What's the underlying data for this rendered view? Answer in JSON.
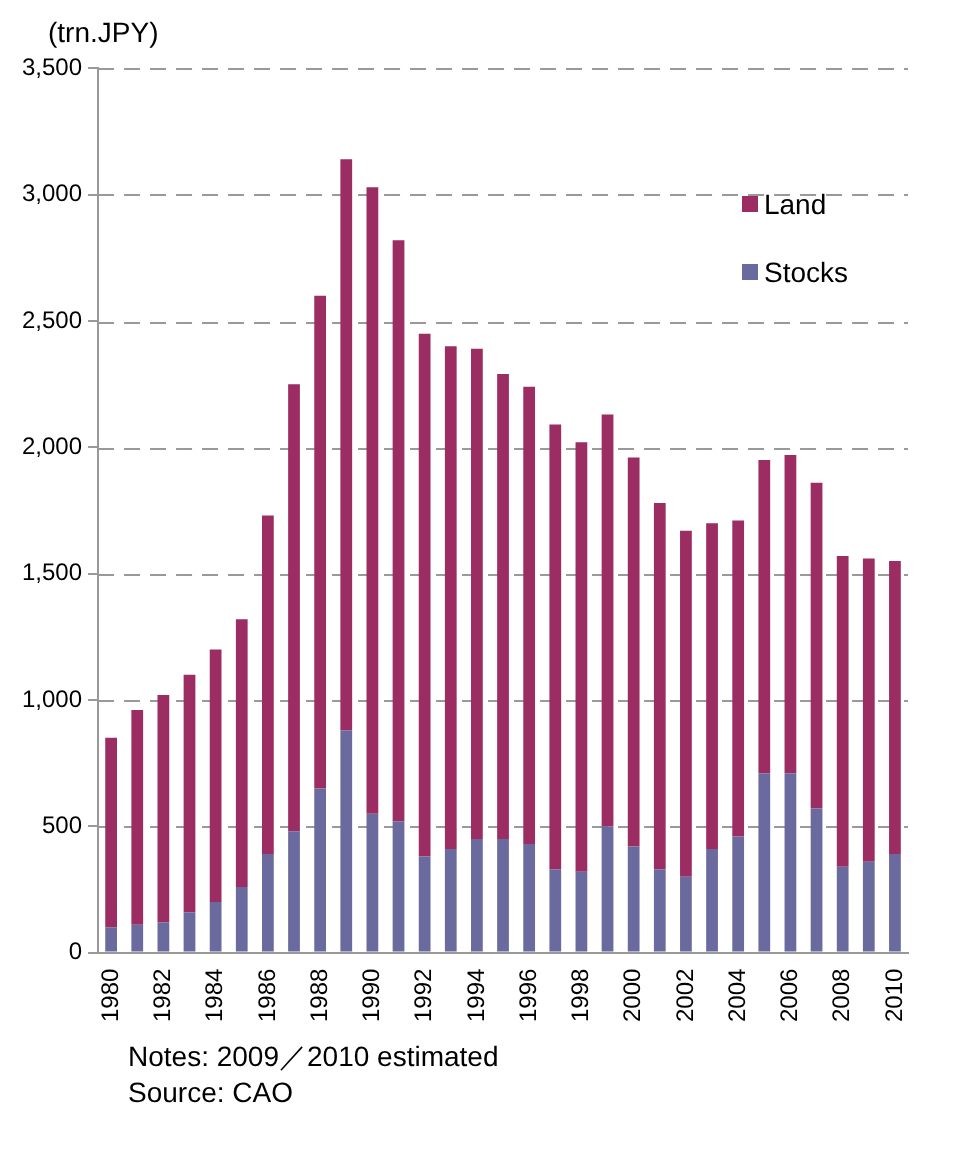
{
  "chart_data": {
    "type": "bar",
    "stacked": true,
    "ylabel": "(trn.JPY)",
    "categories": [
      "1980",
      null,
      "1982",
      null,
      "1984",
      null,
      "1986",
      null,
      "1988",
      null,
      "1990",
      null,
      "1992",
      null,
      "1994",
      null,
      "1996",
      null,
      "1998",
      null,
      "2000",
      null,
      "2002",
      null,
      "2004",
      null,
      "2006",
      null,
      "2008",
      null,
      "2010"
    ],
    "series": [
      {
        "name": "Stocks",
        "color": "#6a6a9e",
        "values": [
          100,
          110,
          120,
          160,
          200,
          260,
          390,
          480,
          650,
          880,
          550,
          520,
          380,
          410,
          450,
          450,
          430,
          330,
          320,
          500,
          420,
          330,
          300,
          410,
          460,
          710,
          710,
          570,
          340,
          360,
          390
        ]
      },
      {
        "name": "Land",
        "color": "#9b2d62",
        "values": [
          750,
          850,
          900,
          940,
          1000,
          1060,
          1340,
          1770,
          1950,
          2260,
          2480,
          2300,
          2070,
          1990,
          1940,
          1840,
          1810,
          1760,
          1700,
          1630,
          1540,
          1450,
          1370,
          1290,
          1250,
          1240,
          1260,
          1290,
          1230,
          1200,
          1160
        ]
      }
    ],
    "ylim": [
      0,
      3500
    ],
    "yticks": [
      0,
      {
        "value": 500,
        "label": "500"
      },
      {
        "value": 1000,
        "label": "1,000"
      },
      {
        "value": 1500,
        "label": "1,500"
      },
      {
        "value": 2000,
        "label": "2,000"
      },
      {
        "value": 2500,
        "label": "2,500"
      },
      {
        "value": 3000,
        "label": "3,000"
      },
      {
        "value": 3500,
        "label": "3,500"
      }
    ],
    "grid": "y",
    "legend": "top right",
    "annotations": [
      "Notes: 2009／2010 estimated",
      "Source: CAO"
    ]
  }
}
